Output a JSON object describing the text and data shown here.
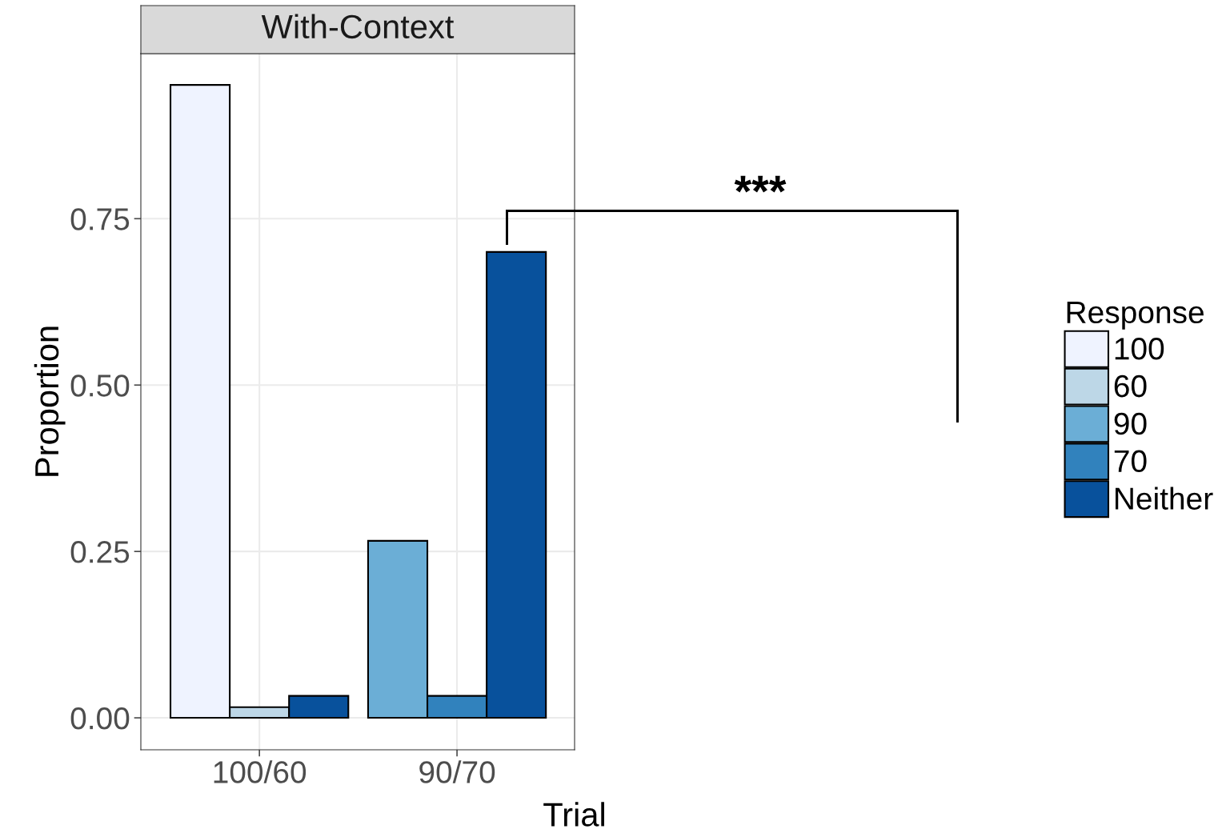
{
  "chart_data": {
    "type": "bar",
    "title": "With-Context",
    "xlabel": "Trial",
    "ylabel": "Proportion",
    "legend_title": "Response",
    "categories": [
      "100/60",
      "90/70"
    ],
    "series": [
      {
        "name": "100",
        "color": "#eff3ff",
        "values": [
          0.951,
          null
        ]
      },
      {
        "name": "60",
        "color": "#bdd7e7",
        "values": [
          0.016,
          null
        ]
      },
      {
        "name": "90",
        "color": "#6baed6",
        "values": [
          null,
          0.266
        ]
      },
      {
        "name": "70",
        "color": "#3182bd",
        "values": [
          null,
          0.033
        ]
      },
      {
        "name": "Neither",
        "color": "#08519c",
        "values": [
          0.033,
          0.7
        ]
      }
    ],
    "ylim": [
      -0.048,
      0.998
    ],
    "yticks": [
      {
        "value": 0,
        "label": "0.00"
      },
      {
        "value": 0.25,
        "label": "0.25"
      },
      {
        "value": 0.5,
        "label": "0.50"
      },
      {
        "value": 0.75,
        "label": "0.75"
      }
    ],
    "grid": true,
    "legend": "right",
    "annotations": [
      "***"
    ]
  }
}
